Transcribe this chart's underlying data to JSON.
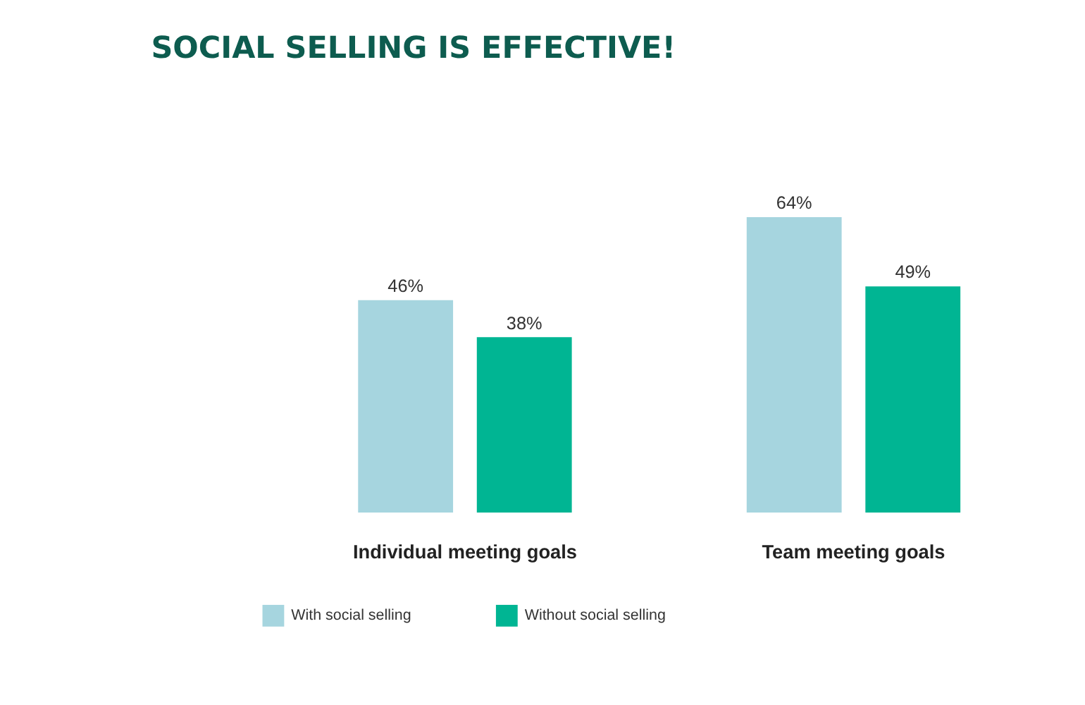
{
  "chart_data": {
    "type": "bar",
    "title": "SOCIAL SELLING IS EFFECTIVE!",
    "categories": [
      "Individual meeting goals",
      "Team meeting goals"
    ],
    "series": [
      {
        "name": "With social selling",
        "color": "#a6d5df",
        "values": [
          46,
          64
        ],
        "value_labels": [
          "46%",
          "64%"
        ]
      },
      {
        "name": "Without social selling",
        "color": "#00b593",
        "values": [
          38,
          49
        ],
        "value_labels": [
          "38%",
          "49%"
        ]
      }
    ],
    "legend": "bottom",
    "grid": false,
    "tick_labels": "x"
  }
}
